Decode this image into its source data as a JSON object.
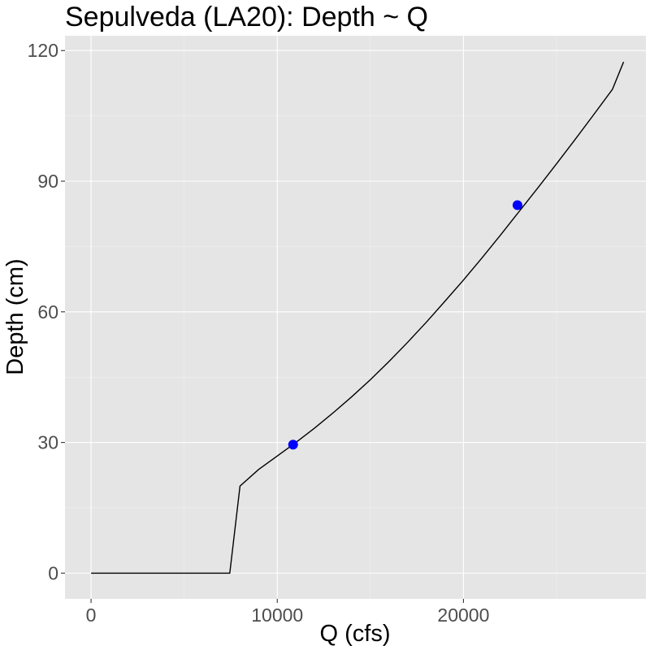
{
  "chart_data": {
    "type": "line",
    "title": "Sepulveda (LA20): Depth ~ Q",
    "xlabel": "Q (cfs)",
    "ylabel": "Depth (cm)",
    "xlim": [
      -1400,
      29800
    ],
    "ylim": [
      -5.9,
      123.4
    ],
    "x_ticks": [
      0,
      10000,
      20000
    ],
    "y_ticks": [
      0,
      30,
      60,
      90,
      120
    ],
    "x_tick_labels": [
      "0",
      "10000",
      "20000"
    ],
    "y_tick_labels": [
      "0",
      "30",
      "60",
      "90",
      "120"
    ],
    "grid": true,
    "background": "#e5e5e5",
    "series": [
      {
        "color": "#000000",
        "points": [
          [
            0,
            0
          ],
          [
            7450,
            0
          ],
          [
            8000,
            20
          ],
          [
            9000,
            23.8
          ],
          [
            10000,
            26.9
          ],
          [
            11000,
            30
          ],
          [
            12000,
            33.3
          ],
          [
            13000,
            36.8
          ],
          [
            14000,
            40.5
          ],
          [
            15000,
            44.4
          ],
          [
            16000,
            48.6
          ],
          [
            17000,
            53
          ],
          [
            18000,
            57.6
          ],
          [
            19000,
            62.4
          ],
          [
            20000,
            67.3
          ],
          [
            21000,
            72.4
          ],
          [
            22000,
            77.7
          ],
          [
            23000,
            83.1
          ],
          [
            24000,
            88.5
          ],
          [
            25000,
            94
          ],
          [
            26000,
            99.6
          ],
          [
            27000,
            105.3
          ],
          [
            28000,
            111.1
          ],
          [
            28600,
            117.4
          ]
        ]
      }
    ],
    "points": {
      "color": "#0000ff",
      "values": [
        {
          "x": 10850,
          "y": 29.5
        },
        {
          "x": 22900,
          "y": 84.5
        }
      ]
    }
  }
}
